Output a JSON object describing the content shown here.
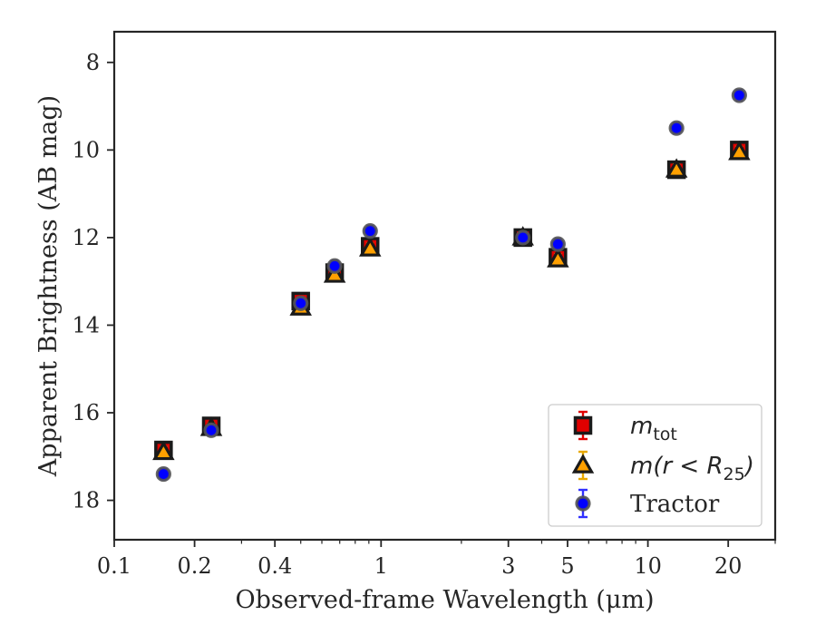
{
  "chart_data": {
    "type": "scatter",
    "title": "",
    "xlabel": "Observed-frame Wavelength (μm)",
    "ylabel": "Apparent Brightness (AB mag)",
    "x_scale": "log",
    "xlim": [
      0.1,
      30
    ],
    "ylim": [
      18.9,
      7.3
    ],
    "y_inverted": true,
    "x_ticks": [
      0.1,
      0.2,
      0.4,
      1,
      3,
      5,
      10,
      20
    ],
    "x_tick_labels": [
      "0.1",
      "0.2",
      "0.4",
      "1",
      "3",
      "5",
      "10",
      "20"
    ],
    "y_ticks": [
      8,
      10,
      12,
      14,
      16,
      18
    ],
    "y_tick_labels": [
      "8",
      "10",
      "12",
      "14",
      "16",
      "18"
    ],
    "grid": false,
    "legend_position": "lower-right",
    "series": [
      {
        "name": "m_tot",
        "marker": "square",
        "color": "#e00000",
        "error_color": "#e00000",
        "x": [
          0.153,
          0.231,
          0.5,
          0.67,
          0.91,
          3.4,
          4.6,
          12.8,
          22.0
        ],
        "y": [
          16.85,
          16.3,
          13.45,
          12.8,
          12.2,
          12.0,
          12.45,
          10.45,
          10.0
        ]
      },
      {
        "name": "m(r < R25)",
        "marker": "triangle",
        "color": "#ffa000",
        "error_color": "#e8a800",
        "x": [
          0.153,
          0.231,
          0.5,
          0.67,
          0.91,
          3.4,
          4.6,
          12.8,
          22.0
        ],
        "y": [
          16.9,
          16.35,
          13.6,
          12.85,
          12.25,
          12.0,
          12.5,
          10.45,
          10.05
        ]
      },
      {
        "name": "Tractor",
        "marker": "circle",
        "color": "#0000ff",
        "error_color": "#3030ff",
        "x": [
          0.153,
          0.231,
          0.5,
          0.67,
          0.91,
          3.4,
          4.6,
          12.8,
          22.0
        ],
        "y": [
          17.4,
          16.4,
          13.5,
          12.65,
          11.85,
          12.0,
          12.15,
          9.5,
          8.75
        ]
      }
    ],
    "legend": {
      "entries": [
        {
          "label_base": "m",
          "label_sub": "tot"
        },
        {
          "label_base": "m(r < R",
          "label_sub": "25",
          "label_close": ")"
        },
        {
          "label": "Tractor"
        }
      ]
    }
  }
}
